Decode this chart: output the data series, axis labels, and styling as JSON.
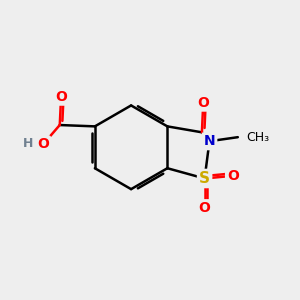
{
  "bg_color": "#eeeeee",
  "bond_color": "#000000",
  "bond_width": 1.8,
  "atom_colors": {
    "C": "#000000",
    "H": "#708090",
    "O": "#ff0000",
    "N": "#0000cc",
    "S": "#ccaa00"
  },
  "font_size": 10,
  "fig_size": [
    3.0,
    3.0
  ],
  "dpi": 100
}
